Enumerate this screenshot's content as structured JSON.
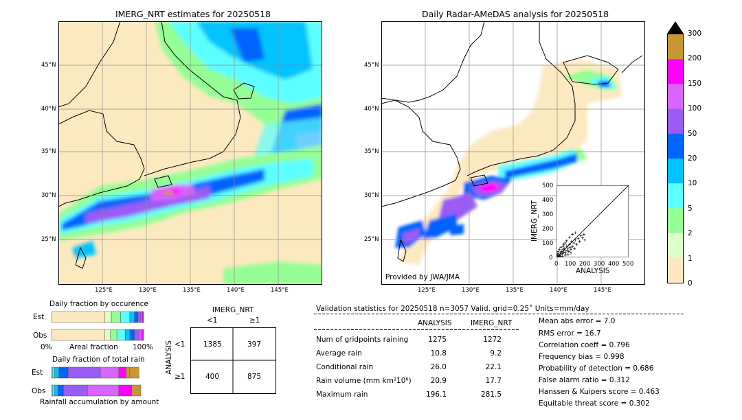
{
  "left_map": {
    "title": "IMERG_NRT estimates for 20250518",
    "lat_labels": [
      "45°N",
      "40°N",
      "35°N",
      "30°N",
      "25°N"
    ],
    "lon_labels": [
      "125°E",
      "130°E",
      "135°E",
      "140°E",
      "145°E"
    ]
  },
  "right_map": {
    "title": "Daily Radar-AMeDAS analysis for 20250518",
    "lat_labels": [
      "45°N",
      "40°N",
      "35°N",
      "30°N",
      "25°N"
    ],
    "lon_labels": [
      "125°E",
      "130°E",
      "135°E",
      "140°E",
      "145°E"
    ],
    "credit": "Provided by JWA/JMA"
  },
  "colorbar": {
    "ticks": [
      "300",
      "200",
      "150",
      "100",
      "50",
      "20",
      "10",
      "5",
      "2",
      "1",
      "0"
    ],
    "colors": [
      "#c89634",
      "#ff00ff",
      "#d964ff",
      "#9a5cf5",
      "#0064ff",
      "#00c3ff",
      "#5cffff",
      "#94ff94",
      "#dcffc8",
      "#fde9c0"
    ]
  },
  "scatter": {
    "xlabel": "ANALYSIS",
    "ylabel": "IMERG_NRT",
    "ticks": [
      "0",
      "100",
      "200",
      "300",
      "400",
      "500"
    ]
  },
  "occurrence": {
    "title": "Daily fraction by occurence",
    "row_est": "Est",
    "row_obs": "Obs",
    "axis_left": "0%",
    "axis_mid": "Areal fraction",
    "axis_right": "100%"
  },
  "total_rain": {
    "title": "Daily fraction of total rain",
    "row_est": "Est",
    "row_obs": "Obs",
    "axis_label": "Rainfall accumulation by amount"
  },
  "contingency": {
    "col_header": "IMERG_NRT",
    "row_header": "ANALYSIS",
    "col_lt": "<1",
    "col_ge": "≥1",
    "row_lt": "<1",
    "row_ge": "≥1",
    "cells": [
      "1385",
      "397",
      "400",
      "875"
    ]
  },
  "validation": {
    "header": "Validation statistics for 20250518  n=3057 Valid. grid=0.25˚ Units=mm/day",
    "col_analysis": "ANALYSIS",
    "col_imerg": "IMERG_NRT",
    "rows": [
      {
        "label": "Num of gridpoints raining",
        "analysis": "1275",
        "imerg": "1272"
      },
      {
        "label": "Average rain",
        "analysis": "10.8",
        "imerg": "9.2"
      },
      {
        "label": "Conditional rain",
        "analysis": "26.0",
        "imerg": "22.1"
      },
      {
        "label": "Rain volume (mm km²10⁶)",
        "analysis": "20.9",
        "imerg": "17.7"
      },
      {
        "label": "Maximum rain",
        "analysis": "196.1",
        "imerg": "281.5"
      }
    ],
    "scores": [
      "Mean abs error =    7.0",
      "RMS error =   16.7",
      "Correlation coeff =  0.796",
      "Frequency bias =  0.998",
      "Probability of detection =  0.686",
      "False alarm ratio =  0.312",
      "Hanssen & Kuipers score =  0.463",
      "Equitable threat score =  0.302"
    ]
  },
  "chart_data": [
    {
      "type": "heatmap",
      "title": "IMERG_NRT estimates for 20250518",
      "xlabel": "",
      "ylabel": "",
      "xlim": [
        120,
        150
      ],
      "ylim": [
        20,
        50
      ],
      "units": "mm/day"
    },
    {
      "type": "heatmap",
      "title": "Daily Radar-AMeDAS analysis for 20250518",
      "xlabel": "",
      "ylabel": "",
      "xlim": [
        120,
        150
      ],
      "ylim": [
        20,
        50
      ],
      "units": "mm/day"
    },
    {
      "type": "scatter",
      "xlabel": "ANALYSIS",
      "ylabel": "IMERG_NRT",
      "xlim": [
        0,
        500
      ],
      "ylim": [
        0,
        500
      ],
      "points": [
        [
          5,
          3
        ],
        [
          8,
          12
        ],
        [
          12,
          6
        ],
        [
          15,
          20
        ],
        [
          20,
          10
        ],
        [
          25,
          30
        ],
        [
          30,
          18
        ],
        [
          35,
          40
        ],
        [
          40,
          25
        ],
        [
          45,
          55
        ],
        [
          50,
          35
        ],
        [
          55,
          60
        ],
        [
          60,
          45
        ],
        [
          65,
          30
        ],
        [
          70,
          80
        ],
        [
          75,
          50
        ],
        [
          80,
          65
        ],
        [
          85,
          40
        ],
        [
          90,
          90
        ],
        [
          95,
          70
        ],
        [
          100,
          55
        ],
        [
          105,
          110
        ],
        [
          110,
          75
        ],
        [
          120,
          100
        ],
        [
          125,
          60
        ],
        [
          130,
          120
        ],
        [
          140,
          90
        ],
        [
          150,
          130
        ],
        [
          160,
          110
        ],
        [
          170,
          150
        ],
        [
          180,
          135
        ],
        [
          190,
          160
        ],
        [
          196,
          120
        ],
        [
          10,
          40
        ],
        [
          20,
          55
        ],
        [
          30,
          70
        ],
        [
          15,
          2
        ],
        [
          25,
          5
        ],
        [
          40,
          8
        ],
        [
          60,
          15
        ],
        [
          80,
          20
        ],
        [
          100,
          30
        ],
        [
          5,
          25
        ],
        [
          50,
          90
        ],
        [
          70,
          115
        ],
        [
          90,
          140
        ],
        [
          110,
          160
        ],
        [
          130,
          170
        ],
        [
          60,
          100
        ],
        [
          45,
          75
        ]
      ]
    },
    {
      "type": "bar",
      "title": "Daily fraction by occurence",
      "categories": [
        "Est",
        "Obs"
      ],
      "xlim": [
        0,
        100
      ],
      "series": [
        {
          "values": [
            58,
            58
          ]
        },
        {
          "values": [
            7,
            6
          ]
        },
        {
          "values": [
            10,
            7
          ]
        },
        {
          "values": [
            10,
            9
          ]
        },
        {
          "values": [
            5,
            5
          ]
        },
        {
          "values": [
            4,
            5
          ]
        },
        {
          "values": [
            3,
            5
          ]
        },
        {
          "values": [
            1.5,
            3
          ]
        },
        {
          "values": [
            1,
            1.5
          ]
        },
        {
          "values": [
            0.5,
            0.5
          ]
        }
      ]
    },
    {
      "type": "bar",
      "title": "Daily fraction of total rain",
      "categories": [
        "Est",
        "Obs"
      ],
      "xlim": [
        0,
        100
      ],
      "series": [
        {
          "values": [
            1,
            1
          ]
        },
        {
          "values": [
            2,
            2
          ]
        },
        {
          "values": [
            5,
            4
          ]
        },
        {
          "values": [
            10,
            6
          ]
        },
        {
          "values": [
            35,
            26
          ]
        },
        {
          "values": [
            20,
            34
          ]
        },
        {
          "values": [
            8,
            14
          ]
        },
        {
          "values": [
            4,
            10
          ]
        },
        {
          "values": [
            10,
            0
          ]
        }
      ]
    }
  ]
}
